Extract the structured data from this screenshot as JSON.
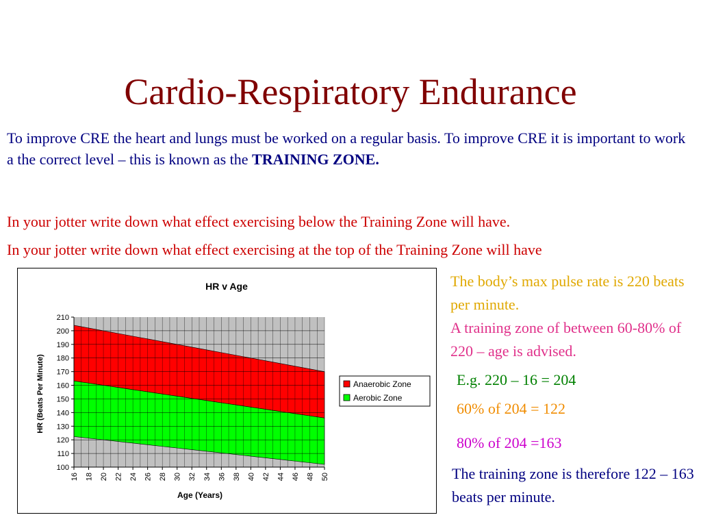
{
  "slide": {
    "title": "Cardio-Respiratory Endurance",
    "intro_text": "To improve CRE the heart and lungs must be worked on a regular basis.  To improve CRE it is important to work a the correct level – this is known as the ",
    "intro_bold": "TRAINING ZONE.",
    "question_1": "In your jotter write down what effect exercising below the Training Zone will have.",
    "question_2": "In your jotter write down what effect exercising at the top of the Training Zone will have",
    "note_max_pulse": "The body’s max pulse rate is 220 beats per minute.",
    "note_training_zone": "A training zone of between 60-80% of 220 – age is advised.",
    "example_calc": "E.g. 220 – 16 = 204",
    "calc_60": "60% of 204 = 122",
    "calc_80": "80% of 204 =163",
    "conclusion": "The training zone is therefore 122 – 163 beats per minute.",
    "colors": {
      "title": "#800000",
      "intro": "#000080",
      "questions": "#cc0000",
      "note_max_pulse": "#e0a800",
      "note_training_zone": "#e0308a",
      "example_calc": "#008000",
      "calc_60": "#f08c00",
      "calc_80": "#cc00cc",
      "conclusion": "#000080"
    }
  },
  "chart_data": {
    "type": "area",
    "title": "HR v Age",
    "xlabel": "Age (Years)",
    "ylabel": "HR (Beats Per Minute)",
    "x": [
      16,
      17,
      18,
      19,
      20,
      21,
      22,
      23,
      24,
      25,
      26,
      27,
      28,
      29,
      30,
      31,
      32,
      33,
      34,
      35,
      36,
      37,
      38,
      39,
      40,
      41,
      42,
      43,
      44,
      45,
      46,
      47,
      48,
      49,
      50
    ],
    "x_tick_labels": [
      "16",
      "18",
      "20",
      "22",
      "24",
      "26",
      "28",
      "30",
      "32",
      "34",
      "36",
      "38",
      "40",
      "42",
      "44",
      "46",
      "48",
      "50"
    ],
    "ylim": [
      100,
      210
    ],
    "y_ticks": [
      100,
      110,
      120,
      130,
      140,
      150,
      160,
      170,
      180,
      190,
      200,
      210
    ],
    "grid": true,
    "legend_position": "right",
    "series": [
      {
        "name": "Anaerobic Zone",
        "color": "#ff0000",
        "lower": [
          163.2,
          162.4,
          161.6,
          160.8,
          160.0,
          159.2,
          158.4,
          157.6,
          156.8,
          156.0,
          155.2,
          154.4,
          153.6,
          152.8,
          152.0,
          151.2,
          150.4,
          149.6,
          148.8,
          148.0,
          147.2,
          146.4,
          145.6,
          144.8,
          144.0,
          143.2,
          142.4,
          141.6,
          140.8,
          140.0,
          139.2,
          138.4,
          137.6,
          136.8,
          136.0
        ],
        "upper": [
          204,
          203,
          202,
          201,
          200,
          199,
          198,
          197,
          196,
          195,
          194,
          193,
          192,
          191,
          190,
          189,
          188,
          187,
          186,
          185,
          184,
          183,
          182,
          181,
          180,
          179,
          178,
          177,
          176,
          175,
          174,
          173,
          172,
          171,
          170
        ]
      },
      {
        "name": "Aerobic Zone",
        "color": "#00ff00",
        "lower": [
          122.4,
          121.8,
          121.2,
          120.6,
          120.0,
          119.4,
          118.8,
          118.2,
          117.6,
          117.0,
          116.4,
          115.8,
          115.2,
          114.6,
          114.0,
          113.4,
          112.8,
          112.2,
          111.6,
          111.0,
          110.4,
          109.8,
          109.2,
          108.6,
          108.0,
          107.4,
          106.8,
          106.2,
          105.6,
          105.0,
          104.4,
          103.8,
          103.2,
          102.6,
          102.0
        ],
        "upper": [
          163.2,
          162.4,
          161.6,
          160.8,
          160.0,
          159.2,
          158.4,
          157.6,
          156.8,
          156.0,
          155.2,
          154.4,
          153.6,
          152.8,
          152.0,
          151.2,
          150.4,
          149.6,
          148.8,
          148.0,
          147.2,
          146.4,
          145.6,
          144.8,
          144.0,
          143.2,
          142.4,
          141.6,
          140.8,
          140.0,
          139.2,
          138.4,
          137.6,
          136.8,
          136.0
        ]
      }
    ]
  }
}
